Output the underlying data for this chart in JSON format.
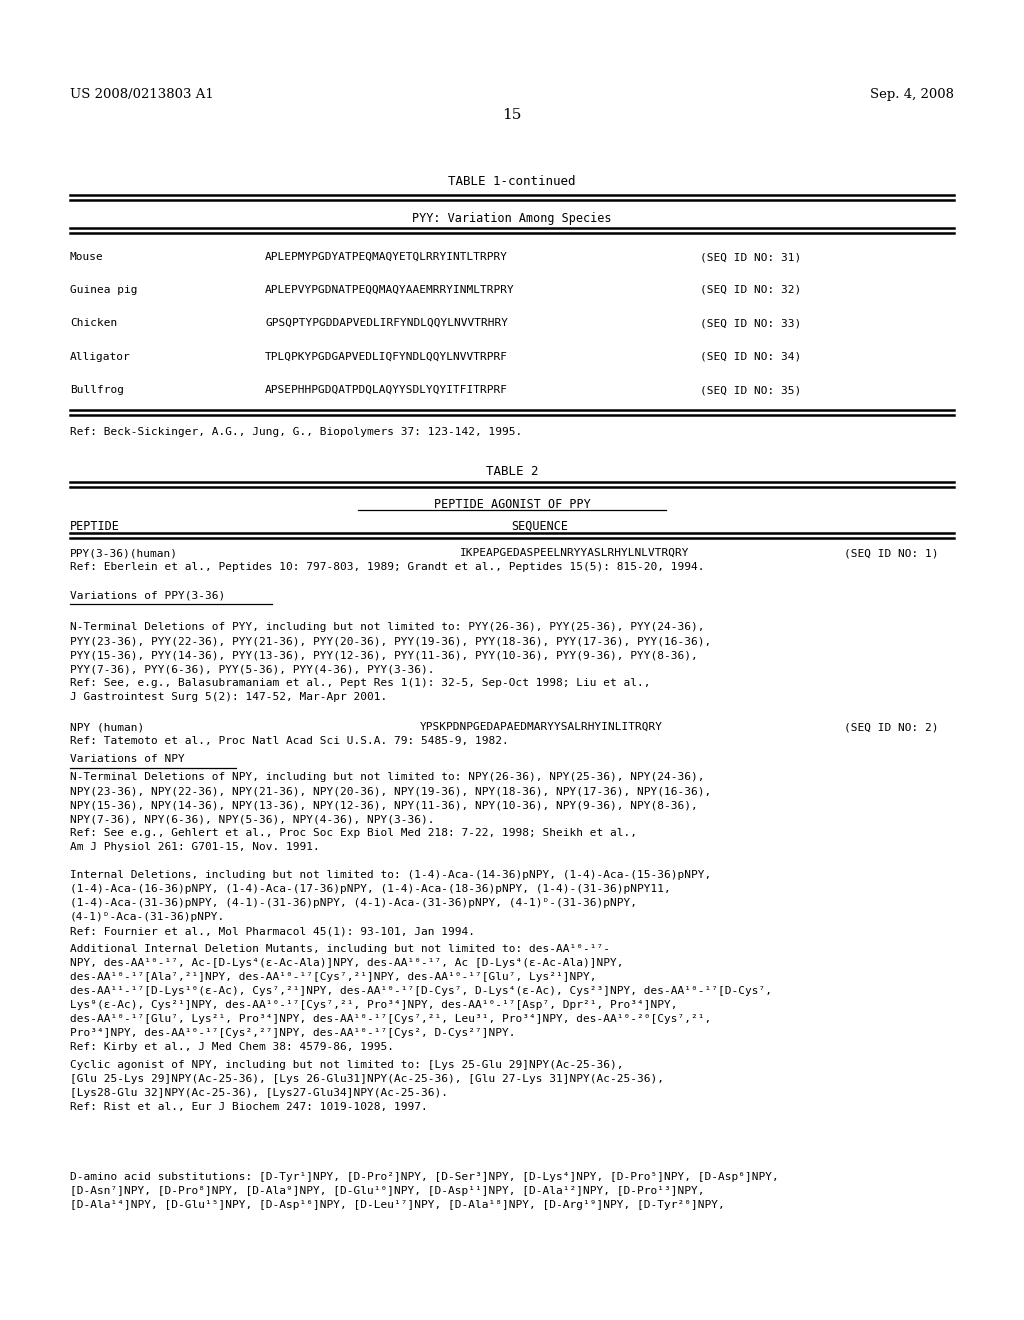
{
  "background_color": "#ffffff",
  "header_left": "US 2008/0213803 A1",
  "header_right": "Sep. 4, 2008",
  "page_number": "15"
}
